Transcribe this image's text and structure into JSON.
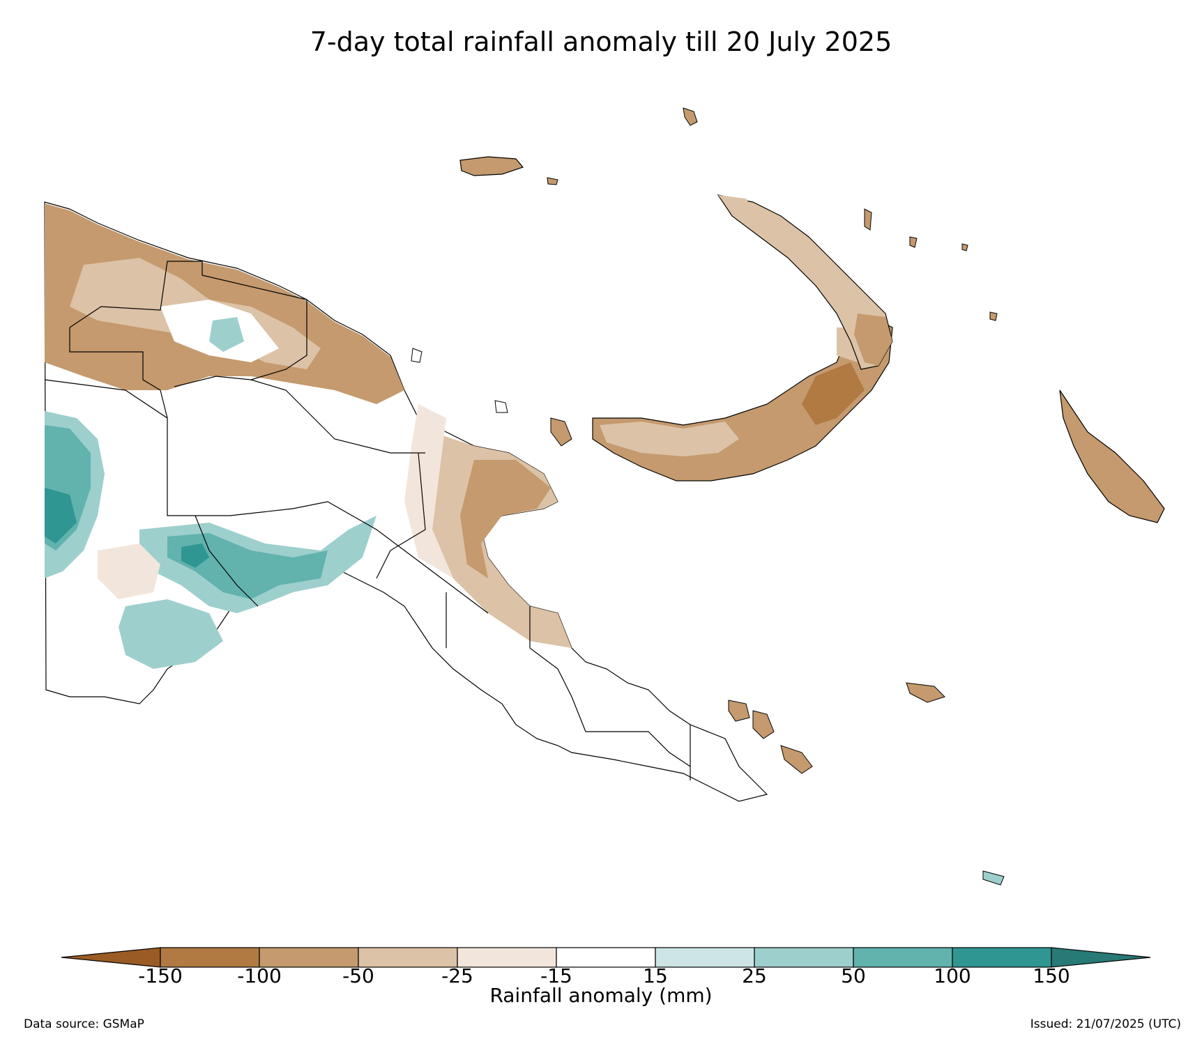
{
  "title": "7-day total rainfall anomaly till 20 July 2025",
  "colorbar": {
    "label": "Rainfall anomaly (mm)",
    "ticks": [
      "-150",
      "-100",
      "-50",
      "-25",
      "-15",
      "15",
      "25",
      "50",
      "100",
      "150"
    ],
    "colors": [
      "#9a5b24",
      "#b07a42",
      "#c49a6e",
      "#dcc2a6",
      "#f2e6dc",
      "#ffffff",
      "#cde6e5",
      "#9dcfcd",
      "#62b2ae",
      "#2f9691",
      "#277a76"
    ]
  },
  "footer": {
    "source": "Data source: GSMaP",
    "issued": "Issued: 21/07/2025 (UTC)"
  }
}
